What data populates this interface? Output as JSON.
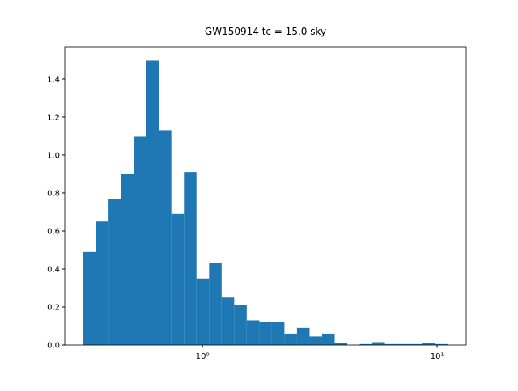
{
  "chart_data": {
    "type": "histogram",
    "title": "GW150914 tc = 15.0 sky",
    "xscale": "log",
    "color": "#1f77b4",
    "bins": [
      0.311,
      0.352,
      0.398,
      0.45,
      0.509,
      0.576,
      0.652,
      0.737,
      0.834,
      0.943,
      1.067,
      1.207,
      1.365,
      1.544,
      1.747,
      1.976,
      2.235,
      2.528,
      2.86,
      3.235,
      3.66,
      4.14,
      4.683,
      5.297,
      5.992,
      6.777,
      7.666,
      8.671,
      9.808,
      11.09
    ],
    "values": [
      0.49,
      0.65,
      0.77,
      0.9,
      1.1,
      1.5,
      1.13,
      0.69,
      0.91,
      0.35,
      0.43,
      0.25,
      0.21,
      0.13,
      0.12,
      0.12,
      0.06,
      0.09,
      0.045,
      0.06,
      0.01,
      0,
      0.005,
      0.015,
      0.005,
      0.005,
      0.005,
      0.01,
      0.005
    ],
    "xlim": [
      0.259,
      13.3
    ],
    "ylim": [
      0,
      1.57
    ],
    "xticks": [
      {
        "value": 1,
        "label": "10⁰"
      },
      {
        "value": 10,
        "label": "10¹"
      }
    ],
    "yticks": [
      {
        "value": 0,
        "label": "0.0"
      },
      {
        "value": 0.2,
        "label": "0.2"
      },
      {
        "value": 0.4,
        "label": "0.4"
      },
      {
        "value": 0.6,
        "label": "0.6"
      },
      {
        "value": 0.8,
        "label": "0.8"
      },
      {
        "value": 1,
        "label": "1.0"
      },
      {
        "value": 1.2,
        "label": "1.2"
      },
      {
        "value": 1.4,
        "label": "1.4"
      }
    ]
  }
}
